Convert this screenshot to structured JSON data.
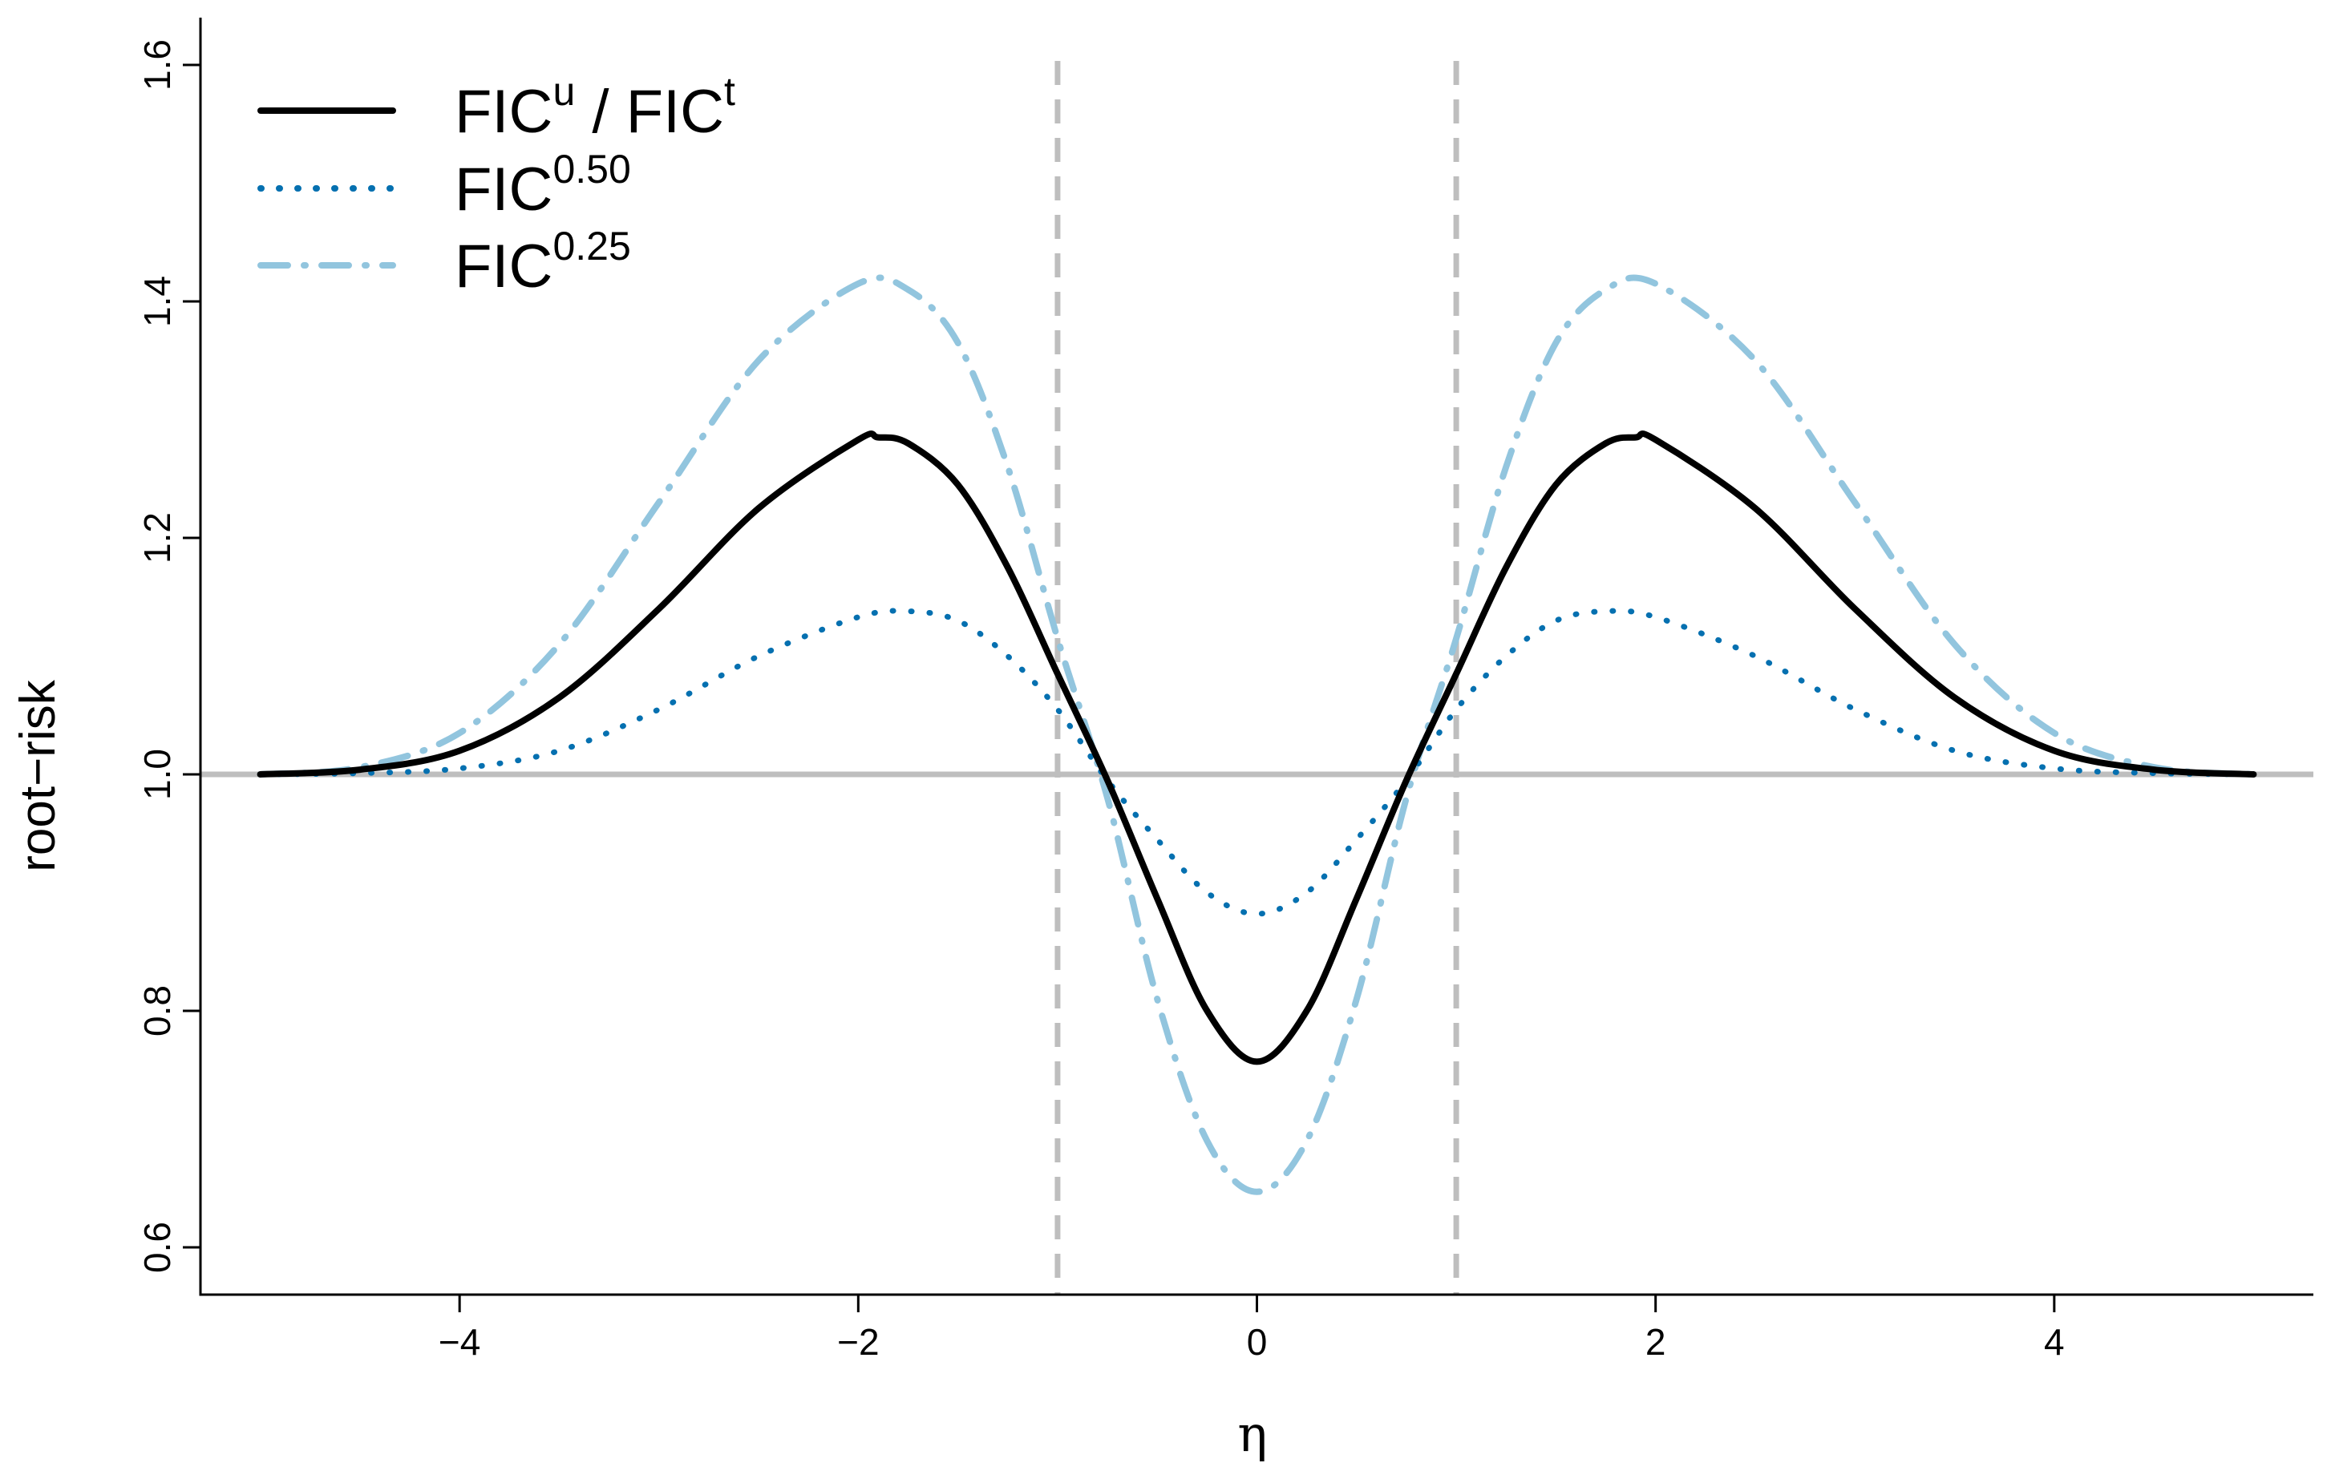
{
  "chart_data": {
    "type": "line",
    "title": "",
    "xlabel": "η",
    "ylabel": "root−risk",
    "xlim": [
      -5.3,
      5.3
    ],
    "ylim": [
      0.56,
      1.64
    ],
    "x_ticks": [
      -4,
      -2,
      0,
      2,
      4
    ],
    "x_tick_labels": [
      "−4",
      "−2",
      "0",
      "2",
      "4"
    ],
    "y_ticks": [
      0.6,
      0.8,
      1.0,
      1.2,
      1.4,
      1.6
    ],
    "y_tick_labels": [
      "0.6",
      "0.8",
      "1.0",
      "1.2",
      "1.4",
      "1.6"
    ],
    "grid": false,
    "legend_position": "top-left",
    "reference_lines": {
      "horizontal": [
        {
          "y": 1.0,
          "color": "#bebebe",
          "style": "solid"
        }
      ],
      "vertical": [
        {
          "x": -1.0,
          "color": "#bebebe",
          "style": "dashed"
        },
        {
          "x": 1.0,
          "color": "#bebebe",
          "style": "dashed"
        }
      ]
    },
    "series": [
      {
        "legend": {
          "base": "FIC",
          "sup": "u",
          "sep": " / ",
          "base2": "FIC",
          "sup2": "t"
        },
        "color": "#000000",
        "style": "solid",
        "x": [
          -5,
          -4.5,
          -4,
          -3.5,
          -3,
          -2.5,
          -2,
          -1.9,
          -1.75,
          -1.5,
          -1.25,
          -1,
          -0.75,
          -0.5,
          -0.25,
          0,
          0.25,
          0.5,
          0.75,
          1,
          1.25,
          1.5,
          1.75,
          1.9,
          2,
          2.5,
          3,
          3.5,
          4,
          4.5,
          5
        ],
        "y": [
          1.0,
          1.004,
          1.02,
          1.065,
          1.14,
          1.225,
          1.283,
          1.285,
          1.28,
          1.245,
          1.175,
          1.085,
          0.995,
          0.895,
          0.8,
          0.757,
          0.8,
          0.895,
          0.995,
          1.085,
          1.175,
          1.245,
          1.28,
          1.285,
          1.283,
          1.225,
          1.14,
          1.065,
          1.02,
          1.004,
          1.0
        ]
      },
      {
        "legend": {
          "base": "FIC",
          "sup": "0.50"
        },
        "color": "#0570b0",
        "style": "dotted",
        "x": [
          -5,
          -4.5,
          -4,
          -3.5,
          -3,
          -2.5,
          -2,
          -1.75,
          -1.5,
          -1.25,
          -1,
          -0.75,
          -0.5,
          -0.25,
          0,
          0.25,
          0.5,
          0.75,
          1,
          1.25,
          1.5,
          1.75,
          2,
          2.5,
          3,
          3.5,
          4,
          4.5,
          5
        ],
        "y": [
          1.0,
          1.001,
          1.005,
          1.02,
          1.055,
          1.1,
          1.133,
          1.138,
          1.13,
          1.1,
          1.055,
          0.995,
          0.945,
          0.9,
          0.882,
          0.9,
          0.945,
          0.995,
          1.055,
          1.1,
          1.13,
          1.138,
          1.133,
          1.1,
          1.055,
          1.02,
          1.005,
          1.001,
          1.0
        ]
      },
      {
        "legend": {
          "base": "FIC",
          "sup": "0.25"
        },
        "color": "#92c5de",
        "style": "dashdot",
        "x": [
          -5,
          -4.5,
          -4,
          -3.5,
          -3,
          -2.5,
          -2,
          -1.75,
          -1.5,
          -1.25,
          -1,
          -0.75,
          -0.5,
          -0.25,
          0,
          0.25,
          0.5,
          0.75,
          1,
          1.25,
          1.5,
          1.75,
          2,
          2.5,
          3,
          3.5,
          4,
          4.5,
          5
        ],
        "y": [
          1.0,
          1.006,
          1.035,
          1.11,
          1.23,
          1.35,
          1.415,
          1.41,
          1.365,
          1.26,
          1.115,
          0.98,
          0.81,
          0.69,
          0.647,
          0.69,
          0.81,
          0.98,
          1.115,
          1.26,
          1.365,
          1.41,
          1.415,
          1.35,
          1.23,
          1.11,
          1.035,
          1.006,
          1.0
        ]
      }
    ]
  }
}
